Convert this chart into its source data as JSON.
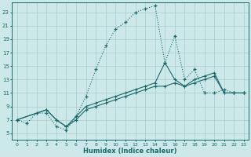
{
  "xlabel": "Humidex (Indice chaleur)",
  "bg_color": "#cce8e8",
  "line_color": "#1a6b6b",
  "grid_color": "#aacccc",
  "xlim": [
    -0.5,
    23.5
  ],
  "ylim": [
    4.0,
    24.5
  ],
  "xticks": [
    0,
    1,
    2,
    3,
    4,
    5,
    6,
    7,
    8,
    9,
    10,
    11,
    12,
    13,
    14,
    15,
    16,
    17,
    18,
    19,
    20,
    21,
    22,
    23
  ],
  "yticks": [
    5,
    7,
    9,
    11,
    13,
    15,
    17,
    19,
    21,
    23
  ],
  "line1_x": [
    0,
    1,
    2,
    3,
    4,
    5,
    6,
    7,
    8,
    9,
    10,
    11,
    12,
    13,
    14,
    15,
    16,
    17,
    18,
    19,
    20,
    21,
    22,
    23
  ],
  "line1_y": [
    7,
    6.5,
    8,
    8,
    6,
    5.5,
    7.5,
    10.5,
    14.5,
    18,
    20.5,
    21.5,
    23,
    23.5,
    24,
    15.5,
    19.5,
    13,
    14.5,
    11,
    11,
    11.5,
    11,
    11
  ],
  "line2_x": [
    0,
    3,
    4,
    5,
    6,
    7,
    8,
    9,
    10,
    11,
    12,
    13,
    14,
    15,
    16,
    17,
    18,
    19,
    20,
    21,
    22,
    23
  ],
  "line2_y": [
    7,
    8.5,
    7,
    6,
    7.5,
    9,
    9.5,
    10,
    10.5,
    11,
    11.5,
    12,
    12.5,
    15.5,
    13,
    12,
    13,
    13.5,
    14,
    11,
    11,
    11
  ],
  "line3_x": [
    0,
    3,
    4,
    5,
    6,
    7,
    8,
    9,
    10,
    11,
    12,
    13,
    14,
    15,
    16,
    17,
    18,
    19,
    20,
    21,
    22,
    23
  ],
  "line3_y": [
    7,
    8.5,
    7,
    6,
    7,
    8.5,
    9,
    9.5,
    10,
    10.5,
    11,
    11.5,
    12,
    12,
    12.5,
    12,
    12.5,
    13,
    13.5,
    11,
    11,
    11
  ]
}
